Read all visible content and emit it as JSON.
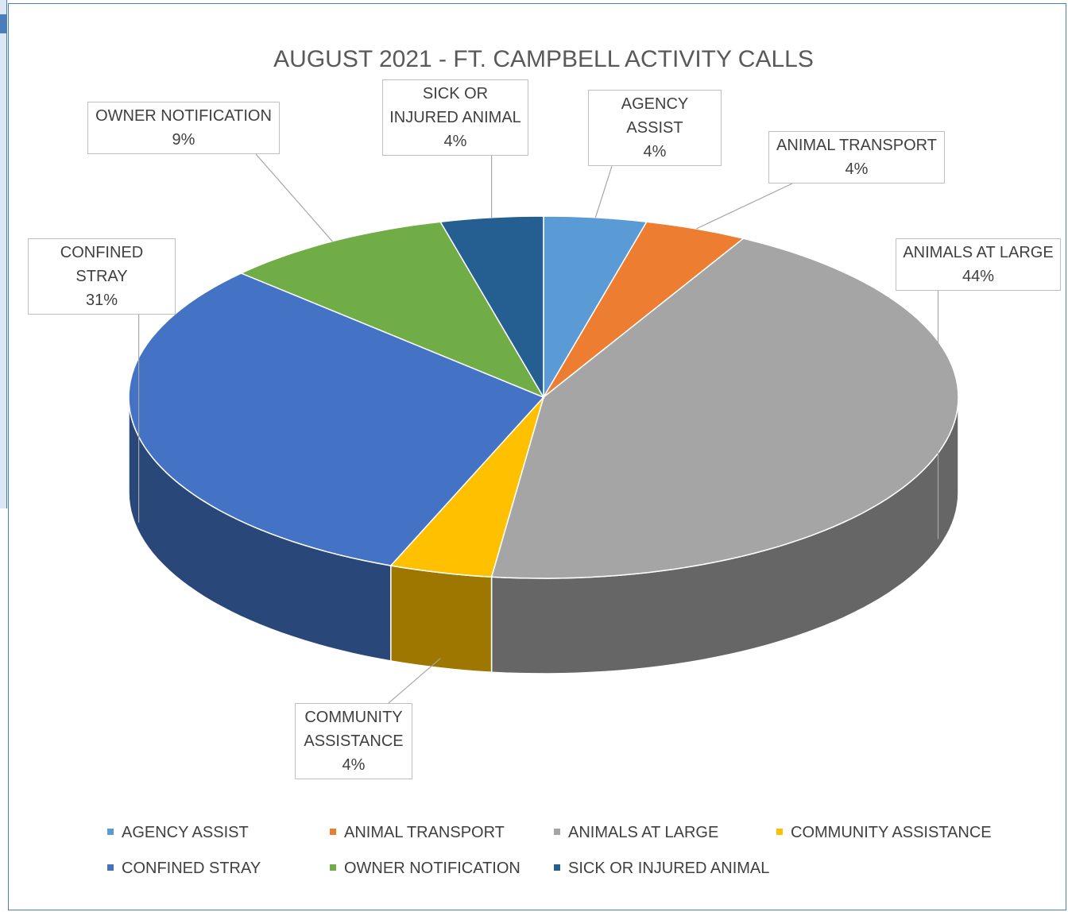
{
  "chart_data": {
    "type": "pie",
    "title": "AUGUST 2021 - FT. CAMPBELL ACTIVITY CALLS",
    "categories": [
      "AGENCY ASSIST",
      "ANIMAL TRANSPORT",
      "ANIMALS AT LARGE",
      "COMMUNITY ASSISTANCE",
      "CONFINED STRAY",
      "OWNER NOTIFICATION",
      "SICK OR INJURED ANIMAL"
    ],
    "values": [
      4,
      4,
      44,
      4,
      31,
      9,
      4
    ],
    "value_labels": [
      "4%",
      "4%",
      "44%",
      "4%",
      "31%",
      "9%",
      "4%"
    ],
    "colors": [
      "#5b9bd5",
      "#ed7d31",
      "#a5a5a5",
      "#ffc000",
      "#4472c4",
      "#70ad47",
      "#255e91"
    ],
    "legend": "bottom"
  }
}
